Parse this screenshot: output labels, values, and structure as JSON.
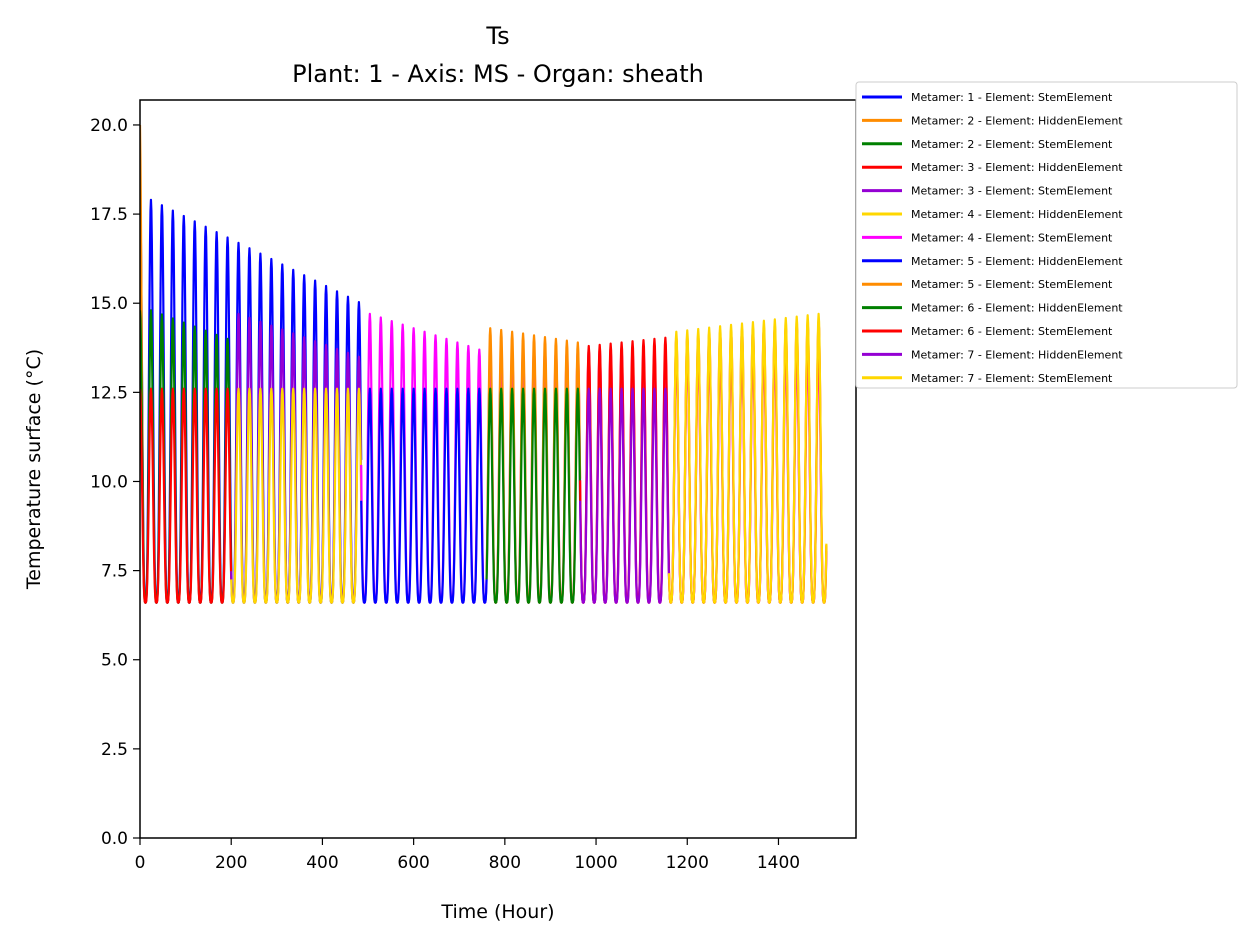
{
  "chart_data": {
    "type": "line",
    "title": "Ts",
    "subtitle": "Plant: 1 - Axis: MS - Organ: sheath",
    "xlabel": "Time (Hour)",
    "ylabel": "Temperature surface (°C)",
    "xlim": [
      0,
      1570
    ],
    "ylim": [
      0,
      20.7
    ],
    "xticks": [
      0,
      200,
      400,
      600,
      800,
      1000,
      1200,
      1400
    ],
    "yticks": [
      0.0,
      2.5,
      5.0,
      7.5,
      10.0,
      12.5,
      15.0,
      17.5,
      20.0
    ],
    "xtick_labels": [
      "0",
      "200",
      "400",
      "600",
      "800",
      "1000",
      "1200",
      "1400"
    ],
    "ytick_labels": [
      "0.0",
      "2.5",
      "5.0",
      "7.5",
      "10.0",
      "12.5",
      "15.0",
      "17.5",
      "20.0"
    ],
    "grid": false,
    "legend_position": "outside-top-right",
    "period_hours": 24,
    "series": [
      {
        "name": "Metamer: 1 - Element: StemElement",
        "color": "#0000ff",
        "x_start": 0,
        "x_end": 485,
        "min": 6.6,
        "peaks": [
          [
            24,
            17.9
          ],
          [
            485,
            15.0
          ]
        ]
      },
      {
        "name": "Metamer: 2 - Element: HiddenElement",
        "color": "#ff8c00",
        "x_start": 0,
        "x_end": 12,
        "min": 6.6,
        "peaks": [
          [
            0,
            20.0
          ],
          [
            12,
            12.5
          ]
        ]
      },
      {
        "name": "Metamer: 2 - Element: StemElement",
        "color": "#008000",
        "x_start": 0,
        "x_end": 200,
        "min": 6.6,
        "peaks": [
          [
            24,
            14.8
          ],
          [
            192,
            14.0
          ]
        ]
      },
      {
        "name": "Metamer: 3 - Element: HiddenElement",
        "color": "#ff0000",
        "x_start": 0,
        "x_end": 200,
        "min": 6.6,
        "peaks": [
          [
            24,
            12.6
          ],
          [
            192,
            12.6
          ]
        ]
      },
      {
        "name": "Metamer: 3 - Element: StemElement",
        "color": "#9400d3",
        "x_start": 200,
        "x_end": 485,
        "min": 6.6,
        "peaks": [
          [
            216,
            14.7
          ],
          [
            480,
            13.5
          ]
        ]
      },
      {
        "name": "Metamer: 4 - Element: HiddenElement",
        "color": "#ffd700",
        "x_start": 200,
        "x_end": 485,
        "min": 6.6,
        "peaks": [
          [
            216,
            12.6
          ],
          [
            480,
            12.6
          ]
        ]
      },
      {
        "name": "Metamer: 4 - Element: StemElement",
        "color": "#ff00ff",
        "x_start": 485,
        "x_end": 1505,
        "min": 6.6,
        "peaks": [
          [
            504,
            14.7
          ],
          [
            744,
            13.7
          ]
        ]
      },
      {
        "name": "Metamer: 5 - Element: HiddenElement",
        "color": "#0000ff",
        "x_start": 485,
        "x_end": 760,
        "min": 6.6,
        "peaks": [
          [
            504,
            12.6
          ],
          [
            744,
            12.6
          ]
        ]
      },
      {
        "name": "Metamer: 5 - Element: StemElement",
        "color": "#ff8c00",
        "x_start": 760,
        "x_end": 965,
        "min": 6.6,
        "peaks": [
          [
            768,
            14.3
          ],
          [
            960,
            13.9
          ]
        ]
      },
      {
        "name": "Metamer: 6 - Element: HiddenElement",
        "color": "#008000",
        "x_start": 760,
        "x_end": 965,
        "min": 6.6,
        "peaks": [
          [
            768,
            12.6
          ],
          [
            960,
            12.6
          ]
        ]
      },
      {
        "name": "Metamer: 6 - Element: StemElement",
        "color": "#ff0000",
        "x_start": 965,
        "x_end": 1505,
        "min": 6.6,
        "peaks": [
          [
            984,
            13.8
          ],
          [
            1488,
            14.5
          ]
        ]
      },
      {
        "name": "Metamer: 7 - Element: HiddenElement",
        "color": "#9400d3",
        "x_start": 965,
        "x_end": 1160,
        "min": 6.6,
        "peaks": [
          [
            984,
            12.6
          ],
          [
            1152,
            12.6
          ]
        ]
      },
      {
        "name": "Metamer: 7 - Element: StemElement",
        "color": "#ffd700",
        "x_start": 1160,
        "x_end": 1505,
        "min": 6.6,
        "peaks": [
          [
            1176,
            14.2
          ],
          [
            1488,
            14.7
          ]
        ]
      }
    ]
  }
}
